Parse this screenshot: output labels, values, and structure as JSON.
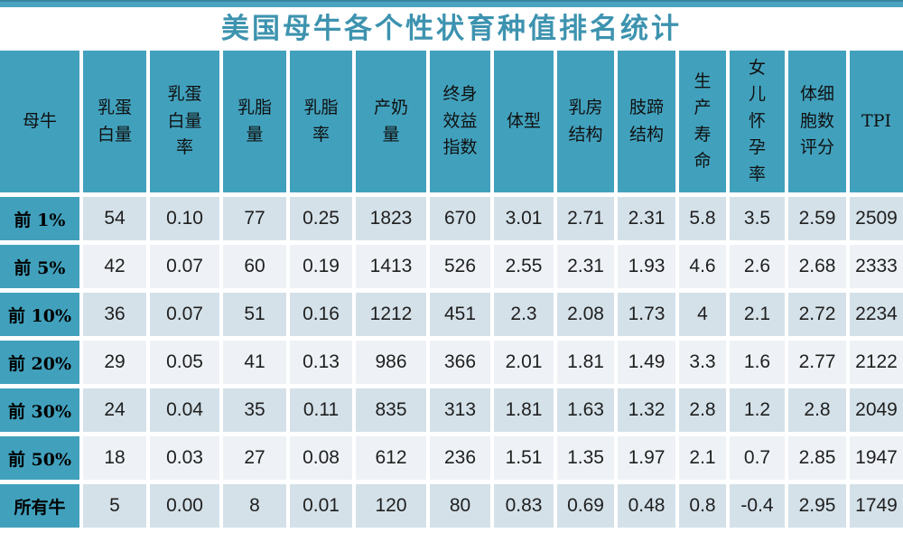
{
  "page": {
    "title": "美国母牛各个性状育种值排名统计"
  },
  "colors": {
    "header_teal": "#41a1bd",
    "title_teal": "#3d93af",
    "top_bar": "#4aa4c0",
    "row_dark": "#d4e1e9",
    "row_light": "#eef2f6"
  },
  "table": {
    "corner_header": "母牛",
    "columns": [
      {
        "label": "乳蛋\n白量"
      },
      {
        "label": "乳蛋\n白量\n率"
      },
      {
        "label": "乳脂\n量"
      },
      {
        "label": "乳脂\n率"
      },
      {
        "label": "产奶\n量"
      },
      {
        "label": "终身\n效益\n指数"
      },
      {
        "label": "体型"
      },
      {
        "label": "乳房\n结构"
      },
      {
        "label": "肢蹄\n结构"
      },
      {
        "label": "生\n产\n寿\n命"
      },
      {
        "label": "女\n儿\n怀\n孕\n率"
      },
      {
        "label": "体细\n胞数\n评分"
      },
      {
        "label": "TPI"
      }
    ],
    "rows": [
      {
        "label": "前 1%",
        "values": [
          "54",
          "0.10",
          "77",
          "0.25",
          "1823",
          "670",
          "3.01",
          "2.71",
          "2.31",
          "5.8",
          "3.5",
          "2.59",
          "2509"
        ]
      },
      {
        "label": "前 5%",
        "values": [
          "42",
          "0.07",
          "60",
          "0.19",
          "1413",
          "526",
          "2.55",
          "2.31",
          "1.93",
          "4.6",
          "2.6",
          "2.68",
          "2333"
        ]
      },
      {
        "label": "前 10%",
        "values": [
          "36",
          "0.07",
          "51",
          "0.16",
          "1212",
          "451",
          "2.3",
          "2.08",
          "1.73",
          "4",
          "2.1",
          "2.72",
          "2234"
        ]
      },
      {
        "label": "前 20%",
        "values": [
          "29",
          "0.05",
          "41",
          "0.13",
          "986",
          "366",
          "2.01",
          "1.81",
          "1.49",
          "3.3",
          "1.6",
          "2.77",
          "2122"
        ]
      },
      {
        "label": "前 30%",
        "values": [
          "24",
          "0.04",
          "35",
          "0.11",
          "835",
          "313",
          "1.81",
          "1.63",
          "1.32",
          "2.8",
          "1.2",
          "2.8",
          "2049"
        ]
      },
      {
        "label": "前 50%",
        "values": [
          "18",
          "0.03",
          "27",
          "0.08",
          "612",
          "236",
          "1.51",
          "1.35",
          "1.97",
          "2.1",
          "0.7",
          "2.85",
          "1947"
        ]
      },
      {
        "label": "所有牛",
        "values": [
          "5",
          "0.00",
          "8",
          "0.01",
          "120",
          "80",
          "0.83",
          "0.69",
          "0.48",
          "0.8",
          "-0.4",
          "2.95",
          "1749"
        ]
      }
    ]
  }
}
